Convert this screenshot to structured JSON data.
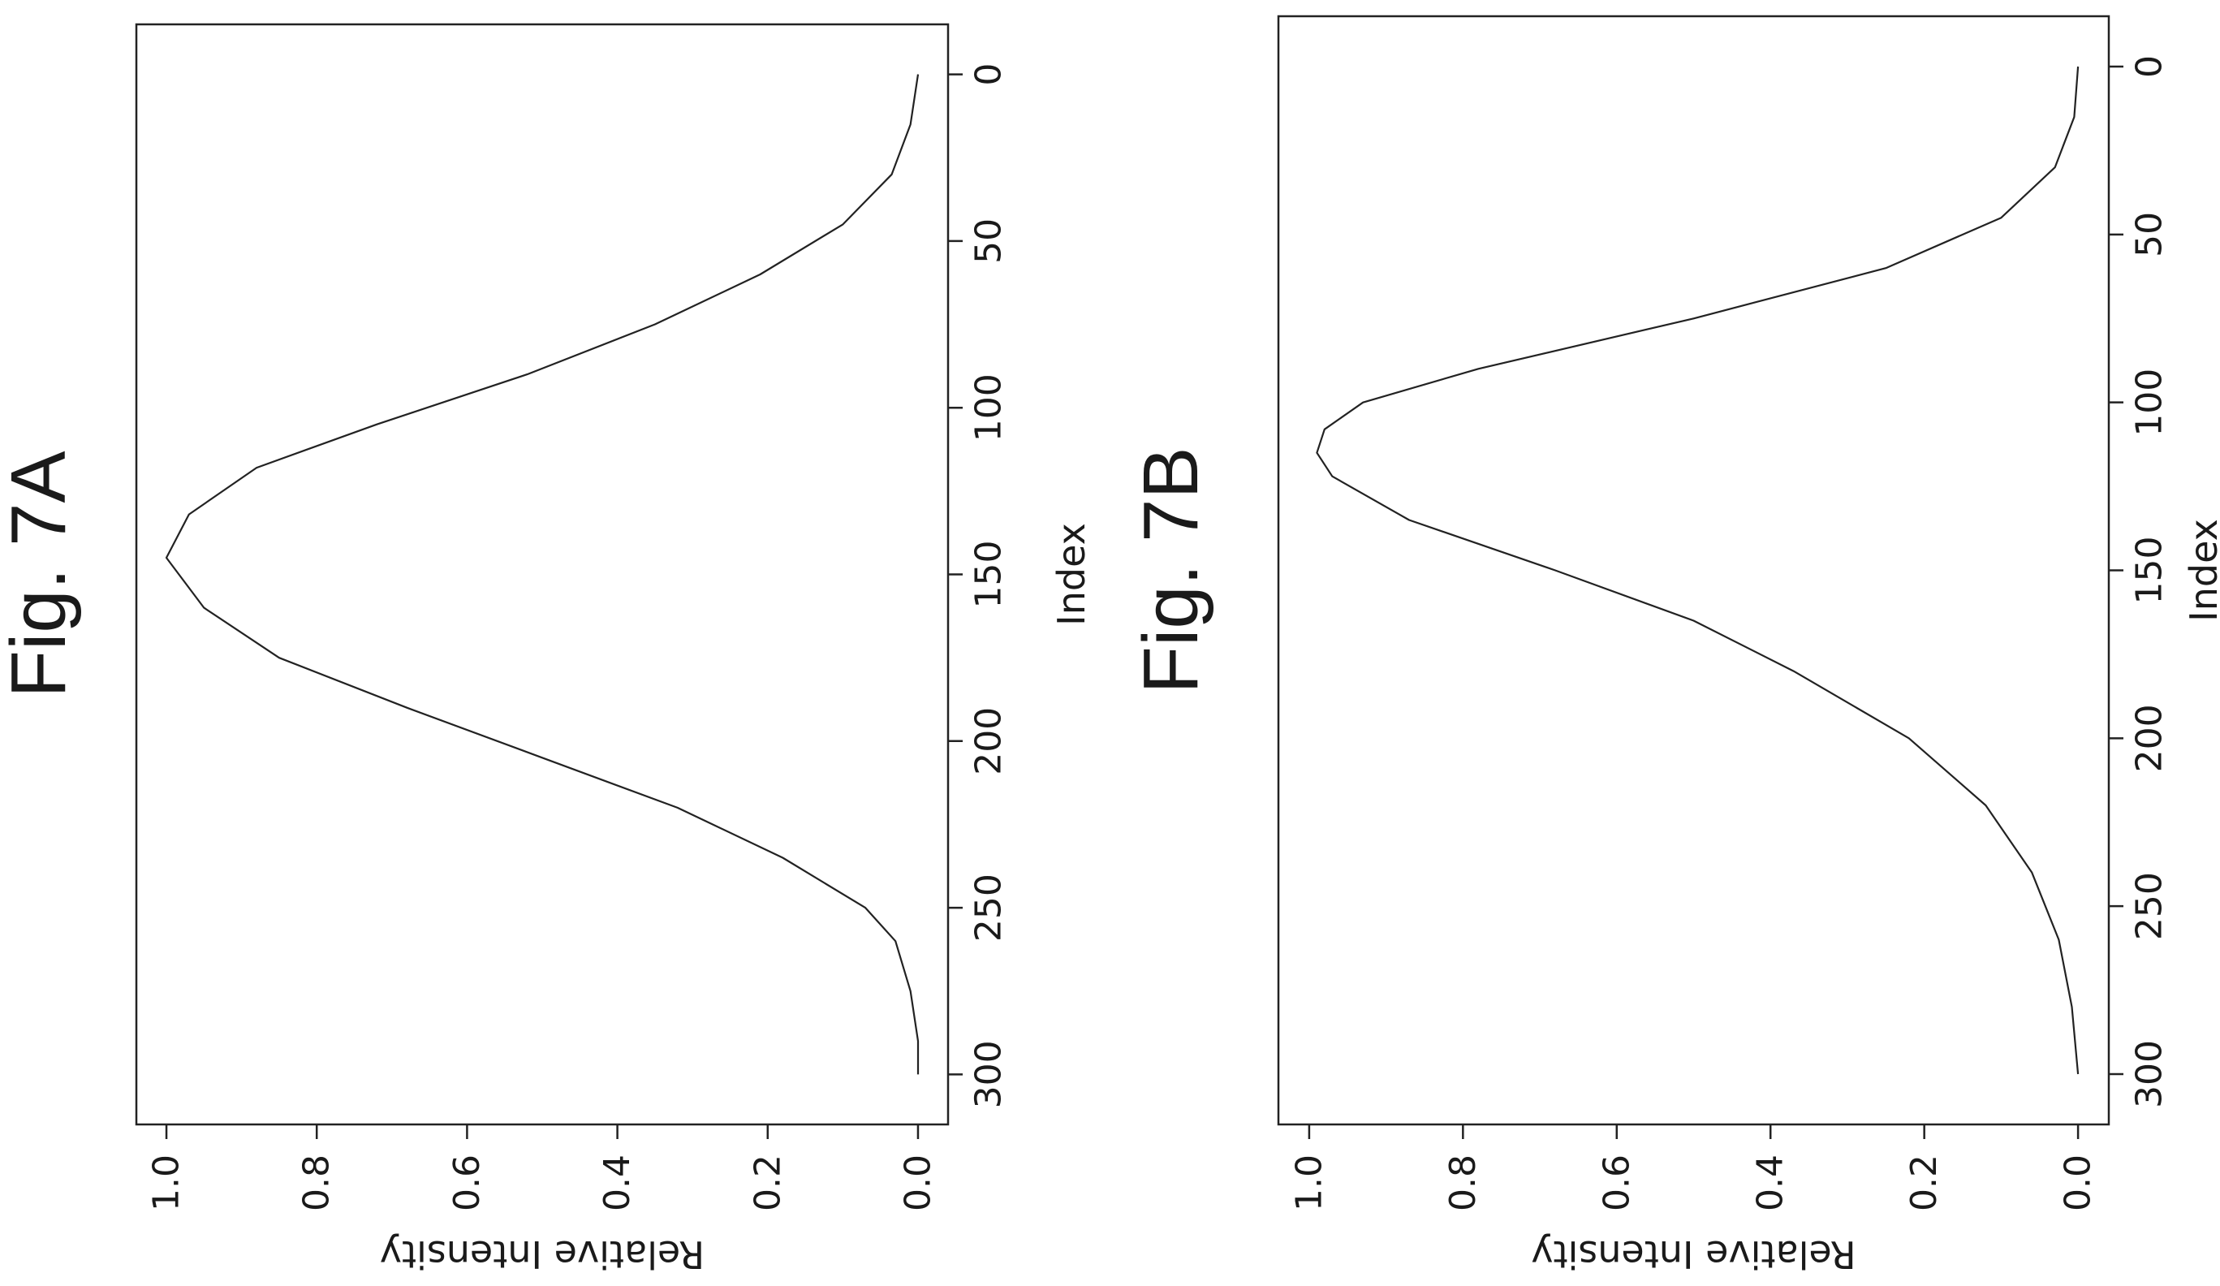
{
  "chart_data": [
    {
      "type": "line",
      "title": "Fig. 7A",
      "xlabel": "Index",
      "ylabel": "Relative Intensity",
      "xlim": [
        -15,
        315
      ],
      "ylim": [
        -0.04,
        1.04
      ],
      "x_ticks": [
        0,
        50,
        100,
        150,
        200,
        250,
        300
      ],
      "y_ticks": [
        0.0,
        0.2,
        0.4,
        0.6,
        0.8,
        1.0
      ],
      "x_tick_labels": [
        "0",
        "50",
        "100",
        "150",
        "200",
        "250",
        "300"
      ],
      "y_tick_labels": [
        "0.0",
        "0.2",
        "0.4",
        "0.6",
        "0.8",
        "1.0"
      ],
      "grid": false,
      "orientation": "rotated 90° clockwise",
      "series": [
        {
          "x": [
            0,
            15,
            30,
            45,
            60,
            75,
            90,
            105,
            118,
            132,
            145,
            160,
            175,
            190,
            205,
            220,
            235,
            250,
            260,
            275,
            290,
            300
          ],
          "y": [
            0.0,
            0.01,
            0.035,
            0.1,
            0.21,
            0.35,
            0.52,
            0.72,
            0.88,
            0.97,
            1.0,
            0.95,
            0.85,
            0.68,
            0.5,
            0.32,
            0.18,
            0.07,
            0.03,
            0.01,
            0.0,
            0.0
          ]
        }
      ]
    },
    {
      "type": "line",
      "title": "Fig. 7B",
      "xlabel": "Index",
      "ylabel": "Relative Intensity",
      "xlim": [
        -15,
        315
      ],
      "ylim": [
        -0.04,
        1.04
      ],
      "x_ticks": [
        0,
        50,
        100,
        150,
        200,
        250,
        300
      ],
      "y_ticks": [
        0.0,
        0.2,
        0.4,
        0.6,
        0.8,
        1.0
      ],
      "x_tick_labels": [
        "0",
        "50",
        "100",
        "150",
        "200",
        "250",
        "300"
      ],
      "y_tick_labels": [
        "0.0",
        "0.2",
        "0.4",
        "0.6",
        "0.8",
        "1.0"
      ],
      "grid": false,
      "orientation": "rotated 90° clockwise",
      "series": [
        {
          "x": [
            0,
            15,
            30,
            45,
            60,
            75,
            90,
            100,
            108,
            115,
            122,
            135,
            150,
            165,
            180,
            200,
            220,
            240,
            260,
            280,
            300
          ],
          "y": [
            0.0,
            0.005,
            0.03,
            0.1,
            0.25,
            0.5,
            0.78,
            0.93,
            0.98,
            0.99,
            0.97,
            0.87,
            0.68,
            0.5,
            0.37,
            0.22,
            0.12,
            0.06,
            0.025,
            0.008,
            0.0
          ]
        }
      ]
    }
  ]
}
